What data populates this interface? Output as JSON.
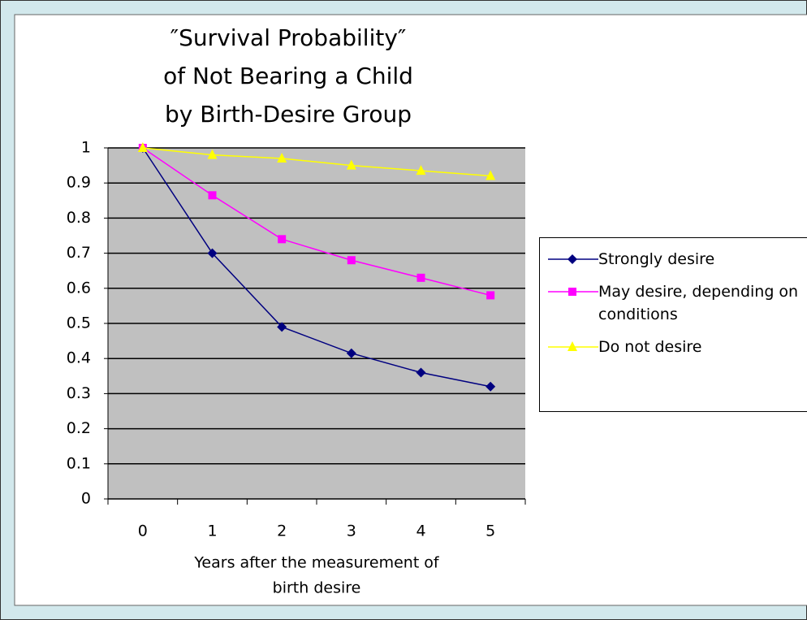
{
  "chart_data": {
    "type": "line",
    "title": [
      "″Survival Probability″",
      "of Not Bearing a Child",
      "by Birth-Desire Group"
    ],
    "x_label": [
      "Years after the measurement of",
      "birth desire"
    ],
    "categories": [
      "0",
      "1",
      "2",
      "3",
      "4",
      "5"
    ],
    "series": [
      {
        "name": "Strongly desire",
        "color": "#000080",
        "marker": "diamond",
        "values": [
          1,
          0.7,
          0.49,
          0.415,
          0.36,
          0.32
        ]
      },
      {
        "name": "May desire, depending on conditions",
        "color": "#ff00ff",
        "marker": "square",
        "values": [
          1,
          0.865,
          0.74,
          0.68,
          0.63,
          0.58
        ]
      },
      {
        "name": "Do not desire",
        "color": "#ffff00",
        "marker": "triangle",
        "values": [
          1,
          0.98,
          0.97,
          0.95,
          0.935,
          0.92
        ]
      }
    ],
    "ylim": [
      0,
      1
    ],
    "yticks": [
      0,
      0.1,
      0.2,
      0.3,
      0.4,
      0.5,
      0.6,
      0.7,
      0.8,
      0.9,
      1
    ],
    "grid": true,
    "legend": "right"
  }
}
